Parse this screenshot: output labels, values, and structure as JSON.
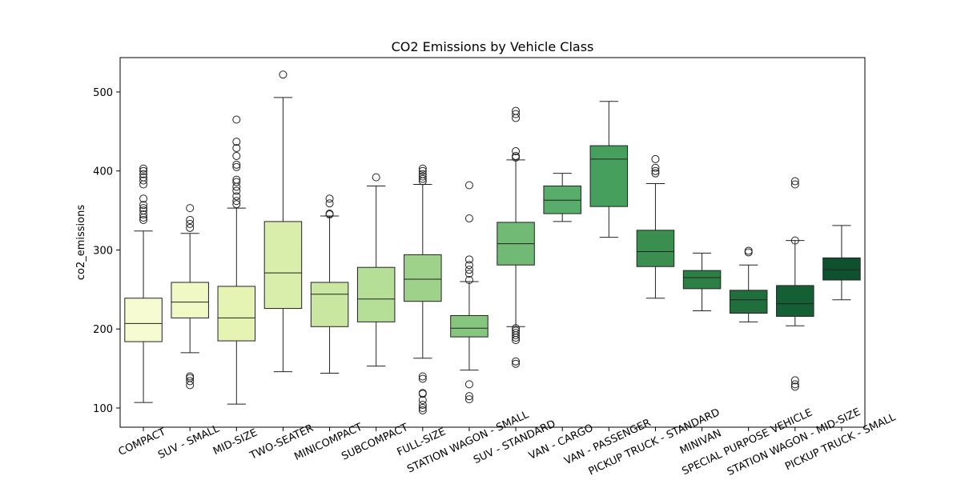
{
  "chart_data": {
    "type": "box",
    "title": "CO2 Emissions by Vehicle Class",
    "y_label": "co2_emissions",
    "categories": [
      "COMPACT",
      "SUV - SMALL",
      "MID-SIZE",
      "TWO-SEATER",
      "MINICOMPACT",
      "SUBCOMPACT",
      "FULL-SIZE",
      "STATION WAGON - SMALL",
      "SUV - STANDARD",
      "VAN - CARGO",
      "VAN - PASSENGER",
      "PICKUP TRUCK - STANDARD",
      "MINIVAN",
      "SPECIAL PURPOSE VEHICLE",
      "STATION WAGON - MID-SIZE",
      "PICKUP TRUCK - SMALL"
    ],
    "colors": [
      "#f7fbd2",
      "#f0f8c3",
      "#e6f4b3",
      "#d9eeab",
      "#cae7a1",
      "#b5de96",
      "#9ed28a",
      "#87c67e",
      "#70ba75",
      "#58ad6a",
      "#479f5e",
      "#3a8f50",
      "#2c7f45",
      "#1f6e3c",
      "#155f35",
      "#0e512f"
    ],
    "boxes": [
      {
        "whislo": 107,
        "q1": 184,
        "med": 207,
        "q3": 239,
        "whishi": 324,
        "fliers": [
          338,
          341,
          345,
          350,
          353,
          357,
          365,
          383,
          388,
          392,
          396,
          400,
          403
        ]
      },
      {
        "whislo": 170,
        "q1": 214,
        "med": 234,
        "q3": 259,
        "whishi": 321,
        "fliers": [
          129,
          134,
          138,
          140,
          328,
          333,
          338,
          353
        ]
      },
      {
        "whislo": 105,
        "q1": 185,
        "med": 214,
        "q3": 254,
        "whishi": 353,
        "fliers": [
          358,
          362,
          368,
          375,
          380,
          386,
          389,
          405,
          408,
          419,
          429,
          437,
          465
        ]
      },
      {
        "whislo": 146,
        "q1": 226,
        "med": 271,
        "q3": 336,
        "whishi": 493,
        "fliers": [
          522
        ]
      },
      {
        "whislo": 144,
        "q1": 203,
        "med": 244,
        "q3": 259,
        "whishi": 343,
        "fliers": [
          345,
          346,
          359,
          365
        ]
      },
      {
        "whislo": 153,
        "q1": 209,
        "med": 238,
        "q3": 278,
        "whishi": 381,
        "fliers": [
          392
        ]
      },
      {
        "whislo": 163,
        "q1": 235,
        "med": 263,
        "q3": 294,
        "whishi": 383,
        "fliers": [
          97,
          100,
          104,
          110,
          118,
          119,
          137,
          140,
          387,
          390,
          393,
          396,
          400,
          403
        ]
      },
      {
        "whislo": 148,
        "q1": 190,
        "med": 201,
        "q3": 217,
        "whishi": 260,
        "fliers": [
          111,
          115,
          130,
          262,
          270,
          275,
          281,
          288,
          340,
          382
        ]
      },
      {
        "whislo": 203,
        "q1": 281,
        "med": 308,
        "q3": 335,
        "whishi": 414,
        "fliers": [
          156,
          159,
          186,
          189,
          192,
          195,
          198,
          201,
          417,
          419,
          425,
          467,
          472,
          476
        ]
      },
      {
        "whislo": 336,
        "q1": 346,
        "med": 363,
        "q3": 381,
        "whishi": 397,
        "fliers": []
      },
      {
        "whislo": 316,
        "q1": 355,
        "med": 415,
        "q3": 432,
        "whishi": 488,
        "fliers": []
      },
      {
        "whislo": 239,
        "q1": 279,
        "med": 298,
        "q3": 325,
        "whishi": 384,
        "fliers": [
          397,
          400,
          404,
          415
        ]
      },
      {
        "whislo": 223,
        "q1": 251,
        "med": 265,
        "q3": 274,
        "whishi": 296,
        "fliers": []
      },
      {
        "whislo": 209,
        "q1": 220,
        "med": 237,
        "q3": 249,
        "whishi": 281,
        "fliers": [
          297,
          299
        ]
      },
      {
        "whislo": 204,
        "q1": 216,
        "med": 232,
        "q3": 255,
        "whishi": 312,
        "fliers": [
          127,
          130,
          135,
          312,
          383,
          387
        ]
      },
      {
        "whislo": 237,
        "q1": 262,
        "med": 275,
        "q3": 290,
        "whishi": 331,
        "fliers": []
      }
    ],
    "ylim": [
      75.7,
      543.5
    ],
    "yticks": [
      100,
      200,
      300,
      400,
      500
    ]
  }
}
